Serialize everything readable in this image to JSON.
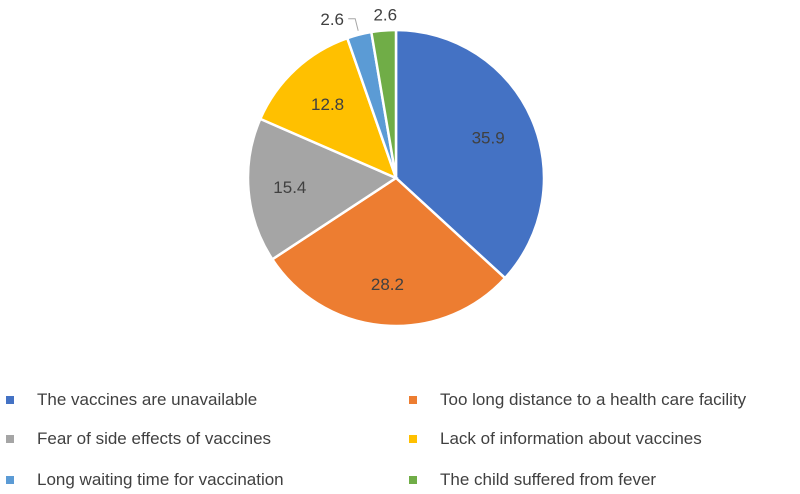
{
  "chart_data": {
    "type": "pie",
    "title": "",
    "categories": [
      "The vaccines are unavailable",
      "Too long distance to a health care facility",
      "Fear of side effects of vaccines",
      "Lack of information about vaccines",
      "Long waiting time for vaccination",
      "The child suffered from fever"
    ],
    "values": [
      35.9,
      28.2,
      15.4,
      12.8,
      2.6,
      2.6
    ],
    "data_labels": [
      "35.9",
      "28.2",
      "15.4",
      "12.8",
      "2.6",
      "2.6"
    ],
    "colors": [
      "#4472c4",
      "#ed7d31",
      "#a5a5a5",
      "#ffc000",
      "#5b9bd5",
      "#70ad47"
    ],
    "legend_position": "bottom",
    "start_angle": "12 o'clock",
    "direction": "clockwise"
  }
}
